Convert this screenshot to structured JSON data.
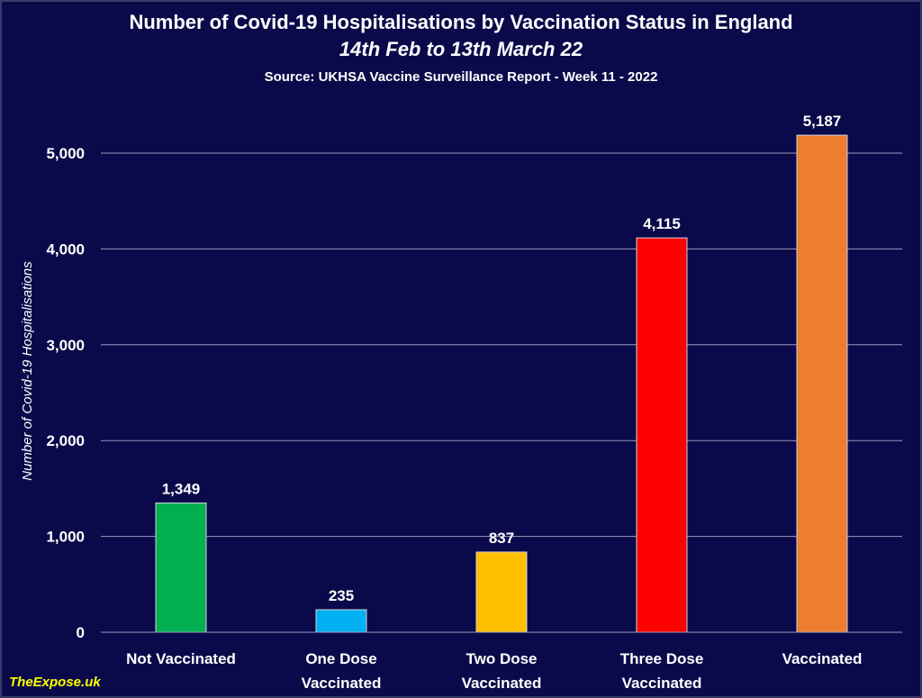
{
  "chart_data": {
    "type": "bar",
    "title": "Number of Covid-19 Hospitalisations by Vaccination Status in England",
    "subtitle": "14th Feb to 13th March 22",
    "source": "Source: UKHSA Vaccine Surveillance Report - Week 11 - 2022",
    "ylabel": "Number of Covid-19 Hospitalisations",
    "xlabel": "",
    "ylim": [
      0,
      5000
    ],
    "yticks": [
      0,
      1000,
      2000,
      3000,
      4000,
      5000
    ],
    "ytick_labels": [
      "0",
      "1,000",
      "2,000",
      "3,000",
      "4,000",
      "5,000"
    ],
    "grid": true,
    "legend": "none",
    "categories": [
      [
        "Not Vaccinated"
      ],
      [
        "One Dose",
        "Vaccinated"
      ],
      [
        "Two Dose",
        "Vaccinated"
      ],
      [
        "Three Dose",
        "Vaccinated"
      ],
      [
        "Vaccinated"
      ]
    ],
    "values": [
      1349,
      235,
      837,
      4115,
      5187
    ],
    "value_labels": [
      "1,349",
      "235",
      "837",
      "4,115",
      "5,187"
    ],
    "colors": [
      "#00b050",
      "#00b0f0",
      "#ffc000",
      "#ff0000",
      "#ed7d31"
    ]
  },
  "branding": {
    "site": "TheExpose.uk"
  }
}
